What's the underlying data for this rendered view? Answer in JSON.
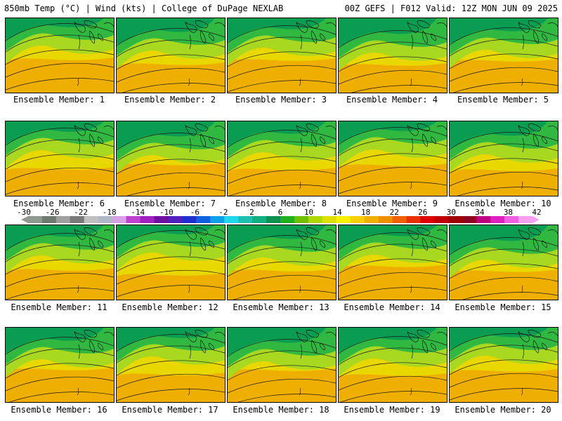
{
  "header": {
    "left": "850mb Temp (°C) | Wind (kts) | College of DuPage NEXLAB",
    "right": "00Z GEFS | F012 Valid: 12Z MON JUN 09 2025"
  },
  "panels": [
    {
      "label": "Ensemble Member: 1"
    },
    {
      "label": "Ensemble Member: 2"
    },
    {
      "label": "Ensemble Member: 3"
    },
    {
      "label": "Ensemble Member: 4"
    },
    {
      "label": "Ensemble Member: 5"
    },
    {
      "label": "Ensemble Member: 6"
    },
    {
      "label": "Ensemble Member: 7"
    },
    {
      "label": "Ensemble Member: 8"
    },
    {
      "label": "Ensemble Member: 9"
    },
    {
      "label": "Ensemble Member: 10"
    },
    {
      "label": "Ensemble Member: 11"
    },
    {
      "label": "Ensemble Member: 12"
    },
    {
      "label": "Ensemble Member: 13"
    },
    {
      "label": "Ensemble Member: 14"
    },
    {
      "label": "Ensemble Member: 15"
    },
    {
      "label": "Ensemble Member: 16"
    },
    {
      "label": "Ensemble Member: 17"
    },
    {
      "label": "Ensemble Member: 18"
    },
    {
      "label": "Ensemble Member: 19"
    },
    {
      "label": "Ensemble Member: 20"
    }
  ],
  "colorbar": {
    "ticks": [
      "-30",
      "-26",
      "-22",
      "-18",
      "-14",
      "-10",
      "-6",
      "-2",
      "2",
      "6",
      "10",
      "14",
      "18",
      "22",
      "26",
      "30",
      "34",
      "38",
      "42"
    ],
    "colors": [
      "#8e9a8e",
      "#6e7a6e",
      "#a0a0a0",
      "#7a7a7a",
      "#c0c0c0",
      "#b0b8c8",
      "#d9a0e8",
      "#c040d0",
      "#a020c0",
      "#7010a0",
      "#5020c0",
      "#2030d0",
      "#1060e0",
      "#10a0e8",
      "#20d8e8",
      "#20c0b0",
      "#10b080",
      "#109050",
      "#20b020",
      "#70c000",
      "#b0d800",
      "#e0e000",
      "#f8f000",
      "#f8d000",
      "#f0b000",
      "#f09000",
      "#f06000",
      "#e83000",
      "#e00000",
      "#c00000",
      "#a00000",
      "#900020",
      "#c00080",
      "#e020c0",
      "#f060e0",
      "#f8a0f0"
    ]
  },
  "colors": {
    "dark_green": "#0a9c50",
    "green": "#30b840",
    "light_green": "#a8d820",
    "yellow": "#e8d800",
    "orange": "#f0a800"
  }
}
